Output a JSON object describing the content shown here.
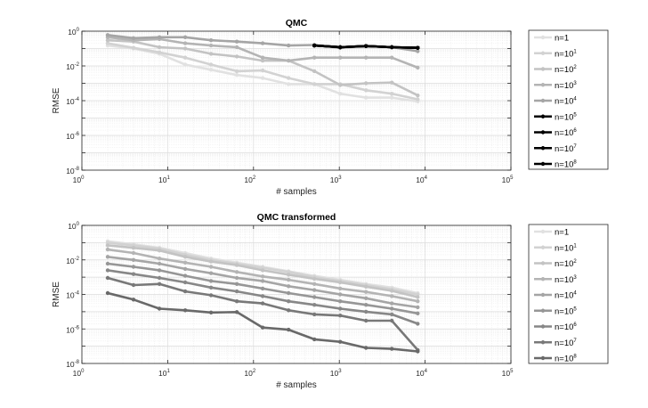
{
  "chart_data": [
    {
      "type": "line",
      "title": "QMC",
      "xlabel": "# samples",
      "ylabel": "RMSE",
      "xscale": "log",
      "yscale": "log",
      "xlim": [
        1,
        100000
      ],
      "ylim": [
        1e-08,
        1
      ],
      "grid": true,
      "legend_position": "right",
      "x_ticks": [
        {
          "base": "10",
          "exp": "0"
        },
        {
          "base": "10",
          "exp": "1"
        },
        {
          "base": "10",
          "exp": "2"
        },
        {
          "base": "10",
          "exp": "3"
        },
        {
          "base": "10",
          "exp": "4"
        },
        {
          "base": "10",
          "exp": "5"
        }
      ],
      "y_ticks": [
        {
          "base": "10",
          "exp": "-8"
        },
        {
          "base": "10",
          "exp": "-6"
        },
        {
          "base": "10",
          "exp": "-4"
        },
        {
          "base": "10",
          "exp": "-2"
        },
        {
          "base": "10",
          "exp": "0"
        }
      ],
      "x": [
        2,
        4,
        8,
        16,
        32,
        64,
        128,
        256,
        512,
        1024,
        2048,
        4096,
        8192
      ],
      "series": [
        {
          "name": "n=1",
          "label_base": "n=1",
          "label_exp": "",
          "color": "#e1e1e1",
          "values": [
            0.15,
            0.1,
            0.05,
            0.012,
            0.006,
            0.003,
            0.002,
            0.0009,
            0.0009,
            0.00025,
            0.00015,
            0.00015,
            9e-05
          ]
        },
        {
          "name": "n=10^1",
          "label_base": "n=10",
          "label_exp": "1",
          "color": "#d2d2d2",
          "values": [
            0.2,
            0.11,
            0.06,
            0.03,
            0.012,
            0.005,
            0.0055,
            0.002,
            0.0009,
            0.0009,
            0.0004,
            0.00025,
            0.00012
          ]
        },
        {
          "name": "n=10^2",
          "label_base": "n=10",
          "label_exp": "2",
          "color": "#c3c3c3",
          "values": [
            0.3,
            0.25,
            0.12,
            0.1,
            0.05,
            0.035,
            0.02,
            0.02,
            0.005,
            0.0008,
            0.001,
            0.0011,
            0.0002
          ]
        },
        {
          "name": "n=10^3",
          "label_base": "n=10",
          "label_exp": "3",
          "color": "#b4b4b4",
          "values": [
            0.45,
            0.3,
            0.35,
            0.2,
            0.15,
            0.12,
            0.03,
            0.02,
            0.03,
            0.03,
            0.03,
            0.03,
            0.008
          ]
        },
        {
          "name": "n=10^4",
          "label_base": "n=10",
          "label_exp": "4",
          "color": "#a5a5a5",
          "values": [
            0.6,
            0.4,
            0.45,
            0.45,
            0.3,
            0.25,
            0.2,
            0.15,
            0.16,
            0.11,
            0.14,
            0.12,
            0.07
          ]
        },
        {
          "name": "n=10^5",
          "label_base": "n=10",
          "label_exp": "5",
          "color": "#000000",
          "values": [
            null,
            null,
            null,
            null,
            null,
            null,
            null,
            null,
            0.15,
            0.12,
            0.14,
            0.12,
            0.11
          ]
        },
        {
          "name": "n=10^6",
          "label_base": "n=10",
          "label_exp": "6",
          "color": "#000000",
          "values": [
            null,
            null,
            null,
            null,
            null,
            null,
            null,
            null,
            0.15,
            0.12,
            0.14,
            0.12,
            0.11
          ]
        },
        {
          "name": "n=10^7",
          "label_base": "n=10",
          "label_exp": "7",
          "color": "#000000",
          "values": [
            null,
            null,
            null,
            null,
            null,
            null,
            null,
            null,
            0.15,
            0.12,
            0.14,
            0.12,
            0.11
          ]
        },
        {
          "name": "n=10^8",
          "label_base": "n=10",
          "label_exp": "8",
          "color": "#000000",
          "values": [
            null,
            null,
            null,
            null,
            null,
            null,
            null,
            null,
            0.15,
            0.12,
            0.14,
            0.12,
            0.11
          ]
        }
      ]
    },
    {
      "type": "line",
      "title": "QMC transformed",
      "xlabel": "# samples",
      "ylabel": "RMSE",
      "xscale": "log",
      "yscale": "log",
      "xlim": [
        1,
        100000
      ],
      "ylim": [
        1e-08,
        1
      ],
      "grid": true,
      "legend_position": "right",
      "x_ticks": [
        {
          "base": "10",
          "exp": "0"
        },
        {
          "base": "10",
          "exp": "1"
        },
        {
          "base": "10",
          "exp": "2"
        },
        {
          "base": "10",
          "exp": "3"
        },
        {
          "base": "10",
          "exp": "4"
        },
        {
          "base": "10",
          "exp": "5"
        }
      ],
      "y_ticks": [
        {
          "base": "10",
          "exp": "-8"
        },
        {
          "base": "10",
          "exp": "-6"
        },
        {
          "base": "10",
          "exp": "-4"
        },
        {
          "base": "10",
          "exp": "-2"
        },
        {
          "base": "10",
          "exp": "0"
        }
      ],
      "x": [
        2,
        4,
        8,
        16,
        32,
        64,
        128,
        256,
        512,
        1024,
        2048,
        4096,
        8192
      ],
      "series": [
        {
          "name": "n=1",
          "label_base": "n=1",
          "label_exp": "",
          "color": "#e1e1e1",
          "values": [
            0.12,
            0.08,
            0.05,
            0.025,
            0.012,
            0.007,
            0.004,
            0.0022,
            0.0012,
            0.0007,
            0.0004,
            0.00025,
            0.00012
          ]
        },
        {
          "name": "n=10^1",
          "label_base": "n=10",
          "label_exp": "1",
          "color": "#d2d2d2",
          "values": [
            0.1,
            0.07,
            0.045,
            0.02,
            0.01,
            0.006,
            0.0035,
            0.002,
            0.001,
            0.0006,
            0.00035,
            0.0002,
            0.0001
          ]
        },
        {
          "name": "n=10^2",
          "label_base": "n=10",
          "label_exp": "2",
          "color": "#c3c3c3",
          "values": [
            0.07,
            0.05,
            0.035,
            0.015,
            0.008,
            0.005,
            0.0025,
            0.0014,
            0.0008,
            0.0005,
            0.00028,
            0.00016,
            7e-05
          ]
        },
        {
          "name": "n=10^3",
          "label_base": "n=10",
          "label_exp": "3",
          "color": "#b4b4b4",
          "values": [
            0.04,
            0.025,
            0.012,
            0.007,
            0.004,
            0.002,
            0.0011,
            0.0007,
            0.0004,
            0.00022,
            0.00014,
            8e-05,
            4e-05
          ]
        },
        {
          "name": "n=10^4",
          "label_base": "n=10",
          "label_exp": "4",
          "color": "#a5a5a5",
          "values": [
            0.015,
            0.01,
            0.006,
            0.003,
            0.0017,
            0.0009,
            0.0006,
            0.0003,
            0.00018,
            0.0001,
            6e-05,
            3e-05,
            1.8e-05
          ]
        },
        {
          "name": "n=10^5",
          "label_base": "n=10",
          "label_exp": "5",
          "color": "#969696",
          "values": [
            0.006,
            0.004,
            0.0025,
            0.0012,
            0.0006,
            0.0004,
            0.00022,
            0.00012,
            7e-05,
            4e-05,
            2.5e-05,
            1.5e-05,
            8e-06
          ]
        },
        {
          "name": "n=10^6",
          "label_base": "n=10",
          "label_exp": "6",
          "color": "#878787",
          "values": [
            0.0025,
            0.0015,
            0.0009,
            0.0005,
            0.00025,
            0.00015,
            8e-05,
            4e-05,
            2.5e-05,
            1.5e-05,
            1e-05,
            7e-06,
            2e-06
          ]
        },
        {
          "name": "n=10^7",
          "label_base": "n=10",
          "label_exp": "7",
          "color": "#787878",
          "values": [
            0.0009,
            0.00035,
            0.0004,
            0.00015,
            9e-05,
            4e-05,
            3e-05,
            1.2e-05,
            7e-06,
            6e-06,
            3e-06,
            3e-06,
            6e-08
          ]
        },
        {
          "name": "n=10^8",
          "label_base": "n=10",
          "label_exp": "8",
          "color": "#696969",
          "values": [
            0.00012,
            5e-05,
            1.5e-05,
            1.2e-05,
            9e-06,
            9.5e-06,
            1.2e-06,
            9e-07,
            2.5e-07,
            1.8e-07,
            8e-08,
            7e-08,
            5e-08
          ]
        }
      ]
    }
  ]
}
